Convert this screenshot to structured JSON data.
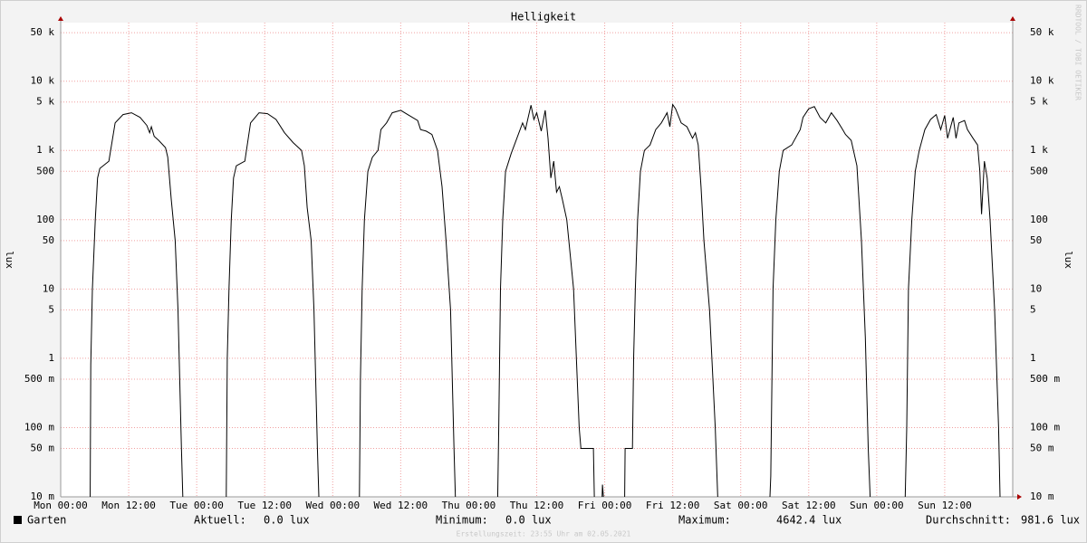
{
  "chart_data": {
    "type": "line",
    "title": "Helligkeit",
    "ylabel": "lux",
    "log_scale": true,
    "grid": true,
    "watermark": "RRDTOOL / TOBI OETIKER",
    "footer": "Erstellungszeit: 23:55 Uhr am 02.05.2021",
    "xlim": [
      0,
      168
    ],
    "xticks": [
      {
        "value": 0,
        "label": "Mon 00:00"
      },
      {
        "value": 12,
        "label": "Mon 12:00"
      },
      {
        "value": 24,
        "label": "Tue 00:00"
      },
      {
        "value": 36,
        "label": "Tue 12:00"
      },
      {
        "value": 48,
        "label": "Wed 00:00"
      },
      {
        "value": 60,
        "label": "Wed 12:00"
      },
      {
        "value": 72,
        "label": "Thu 00:00"
      },
      {
        "value": 84,
        "label": "Thu 12:00"
      },
      {
        "value": 96,
        "label": "Fri 00:00"
      },
      {
        "value": 108,
        "label": "Fri 12:00"
      },
      {
        "value": 120,
        "label": "Sat 00:00"
      },
      {
        "value": 132,
        "label": "Sat 12:00"
      },
      {
        "value": 144,
        "label": "Sun 00:00"
      },
      {
        "value": 156,
        "label": "Sun 12:00"
      }
    ],
    "ylim": [
      0.01,
      70000
    ],
    "yticks": [
      {
        "value": 50000,
        "label": "50 k"
      },
      {
        "value": 10000,
        "label": "10 k"
      },
      {
        "value": 5000,
        "label": "5 k"
      },
      {
        "value": 1000,
        "label": "1 k"
      },
      500,
      100,
      50,
      10,
      5,
      1,
      {
        "value": 0.5,
        "label": "500 m"
      },
      {
        "value": 0.1,
        "label": "100 m"
      },
      {
        "value": 0.05,
        "label": "50 m"
      },
      {
        "value": 0.01,
        "label": "10 m"
      }
    ],
    "x": [
      0,
      5.2,
      5.3,
      5.6,
      6.1,
      6.5,
      6.9,
      8.5,
      9.6,
      11,
      12.5,
      14,
      15.2,
      15.7,
      16,
      16.5,
      17.3,
      18.5,
      18.9,
      19.5,
      20.2,
      20.7,
      21.3,
      21.6,
      29.2,
      29.4,
      29.7,
      30.1,
      30.5,
      31,
      32.5,
      33.5,
      35,
      36.5,
      38,
      39.5,
      41,
      42.5,
      43,
      43.5,
      44.2,
      44.7,
      45.3,
      45.6,
      52.7,
      52.9,
      53.2,
      53.6,
      54.2,
      55,
      56,
      56.5,
      57.5,
      58.5,
      60,
      61.5,
      63,
      63.5,
      64.5,
      65.5,
      66.5,
      67.3,
      68,
      68.8,
      69.4,
      69.7,
      77.1,
      77.3,
      77.6,
      78,
      78.5,
      79.5,
      80.5,
      81.5,
      82,
      83,
      83.5,
      84,
      84.8,
      85.5,
      86,
      86.5,
      87,
      87.5,
      88,
      88.5,
      89.3,
      90.5,
      91.5,
      91.8,
      94,
      94.2,
      95.5,
      95.6,
      95.9,
      99.5,
      99.6,
      100.9,
      101.1,
      101.4,
      101.8,
      102.3,
      103,
      104,
      105,
      106,
      107,
      107.5,
      108,
      108.5,
      109.5,
      110.5,
      111.5,
      112,
      112.5,
      113,
      113.5,
      114.5,
      115.5,
      116,
      125.1,
      125.3,
      125.7,
      126.2,
      126.8,
      127.5,
      129,
      130.5,
      131,
      132,
      133,
      134,
      135,
      136,
      137,
      138,
      138.5,
      139.5,
      140.5,
      141.3,
      142,
      142.5,
      142.9,
      149,
      149.3,
      149.6,
      150.2,
      150.8,
      151.5,
      152.5,
      153.5,
      154.5,
      155.3,
      156,
      156.5,
      157.5,
      158,
      158.5,
      159.5,
      160,
      161,
      161.8,
      162.2,
      162.5,
      163,
      163.5,
      164,
      164.8,
      165.5,
      165.8,
      168
    ],
    "series": [
      {
        "name": "Garten",
        "color": "#000000",
        "values": [
          0,
          0,
          0.8,
          10,
          100,
          400,
          550,
          700,
          2500,
          3300,
          3500,
          3000,
          2300,
          1800,
          2200,
          1600,
          1400,
          1100,
          800,
          200,
          50,
          5,
          0.05,
          0,
          0,
          1,
          10,
          100,
          400,
          600,
          700,
          2500,
          3500,
          3400,
          2800,
          1800,
          1300,
          1000,
          600,
          150,
          50,
          5,
          0.05,
          0,
          0,
          0.5,
          10,
          100,
          500,
          800,
          1000,
          2000,
          2500,
          3500,
          3800,
          3200,
          2700,
          2000,
          1900,
          1700,
          1000,
          300,
          50,
          5,
          0.05,
          0,
          0,
          0.1,
          10,
          100,
          500,
          900,
          1500,
          2500,
          2000,
          4500,
          2800,
          3500,
          1900,
          3800,
          1500,
          400,
          700,
          250,
          300,
          200,
          100,
          10,
          0.1,
          0.05,
          0.05,
          0,
          0,
          0.015,
          0,
          0,
          0.05,
          0.05,
          1,
          10,
          100,
          500,
          1000,
          1200,
          2000,
          2500,
          3500,
          2200,
          4600,
          4000,
          2500,
          2200,
          1500,
          1800,
          1200,
          300,
          50,
          5,
          0.1,
          0,
          0,
          0.02,
          10,
          100,
          500,
          1000,
          1200,
          2000,
          3000,
          4000,
          4300,
          3000,
          2500,
          3500,
          2700,
          2000,
          1700,
          1400,
          600,
          50,
          2,
          0.05,
          0,
          0,
          0.1,
          10,
          100,
          500,
          1000,
          2000,
          2800,
          3300,
          2000,
          3200,
          1500,
          3000,
          1500,
          2500,
          2700,
          2000,
          1500,
          1200,
          500,
          120,
          700,
          400,
          100,
          5,
          0.1,
          0,
          0
        ]
      }
    ],
    "stats": [
      {
        "label": "Aktuell:",
        "value": "0.0 lux"
      },
      {
        "label": "Minimum:",
        "value": "0.0 lux"
      },
      {
        "label": "Maximum:",
        "value": "4642.4 lux"
      },
      {
        "label": "Durchschnitt:",
        "value": "981.6 lux"
      }
    ]
  }
}
